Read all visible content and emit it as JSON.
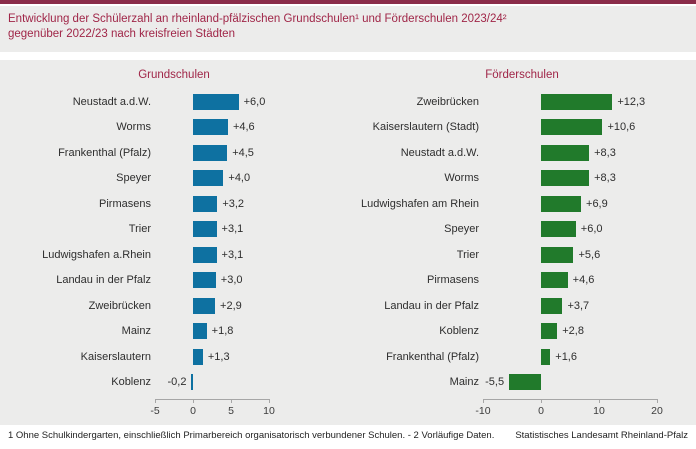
{
  "header": {
    "title_line1": "Entwicklung der Schülerzahl an rheinland-pfälzischen Grundschulen¹ und Förderschulen 2023/24²",
    "title_line2": "gegenüber 2022/23 nach kreisfreien Städten"
  },
  "colors": {
    "accent_bar": "#8a2c49",
    "title_text": "#a02648",
    "block_background": "#ececeb",
    "grundschulen_bar": "#0e71a1",
    "foerderschulen_bar": "#217a2b"
  },
  "footer": {
    "note": "1 Ohne Schulkindergarten, einschließlich Primarbereich organisatorisch verbundener Schulen.  - 2 Vorläufige Daten.",
    "source": "Statistisches Landesamt Rheinland-Pfalz"
  },
  "chart_data": [
    {
      "type": "bar",
      "orientation": "horizontal",
      "title": "Grundschulen",
      "bar_color": "#0e71a1",
      "categories": [
        "Neustadt a.d.W.",
        "Worms",
        "Frankenthal (Pfalz)",
        "Speyer",
        "Pirmasens",
        "Trier",
        "Ludwigshafen a.Rhein",
        "Landau in der Pfalz",
        "Zweibrücken",
        "Mainz",
        "Kaiserslautern",
        "Koblenz"
      ],
      "values": [
        6.0,
        4.6,
        4.5,
        4.0,
        3.2,
        3.1,
        3.1,
        3.0,
        2.9,
        1.8,
        1.3,
        -0.2
      ],
      "value_labels": [
        "+6,0",
        "+4,6",
        "+4,5",
        "+4,0",
        "+3,2",
        "+3,1",
        "+3,1",
        "+3,0",
        "+2,9",
        "+1,8",
        "+1,3",
        "-0,2"
      ],
      "xlim": [
        -5,
        10
      ],
      "ticks": [
        -5,
        0,
        5,
        10
      ],
      "tick_labels": [
        "-5",
        "0",
        "5",
        "10"
      ],
      "grid": false,
      "legend": false
    },
    {
      "type": "bar",
      "orientation": "horizontal",
      "title": "Förderschulen",
      "bar_color": "#217a2b",
      "categories": [
        "Zweibrücken",
        "Kaiserslautern (Stadt)",
        "Neustadt a.d.W.",
        "Worms",
        "Ludwigshafen am Rhein",
        "Speyer",
        "Trier",
        "Pirmasens",
        "Landau in der Pfalz",
        "Koblenz",
        "Frankenthal (Pfalz)",
        "Mainz"
      ],
      "values": [
        12.3,
        10.6,
        8.3,
        8.3,
        6.9,
        6.0,
        5.6,
        4.6,
        3.7,
        2.8,
        1.6,
        -5.5
      ],
      "value_labels": [
        "+12,3",
        "+10,6",
        "+8,3",
        "+8,3",
        "+6,9",
        "+6,0",
        "+5,6",
        "+4,6",
        "+3,7",
        "+2,8",
        "+1,6",
        "-5,5"
      ],
      "xlim": [
        -10,
        20
      ],
      "ticks": [
        -10,
        0,
        10,
        20
      ],
      "tick_labels": [
        "-10",
        "0",
        "10",
        "20"
      ],
      "grid": false,
      "legend": false
    }
  ]
}
